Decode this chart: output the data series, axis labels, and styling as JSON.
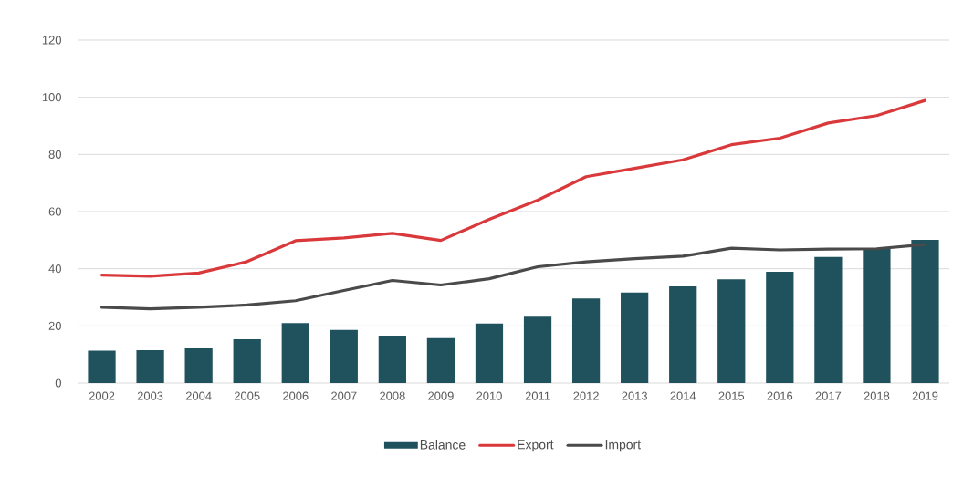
{
  "chart_data": {
    "type": "bar",
    "categories": [
      "2002",
      "2003",
      "2004",
      "2005",
      "2006",
      "2007",
      "2008",
      "2009",
      "2010",
      "2011",
      "2012",
      "2013",
      "2014",
      "2015",
      "2016",
      "2017",
      "2018",
      "2019"
    ],
    "series": [
      {
        "name": "Balance",
        "color": "#1f525d",
        "values": [
          11.3,
          11.5,
          12.1,
          15.3,
          21,
          18.6,
          16.6,
          15.7,
          20.8,
          23.2,
          29.6,
          31.7,
          33.8,
          36.3,
          38.9,
          44.1,
          47,
          50.1
        ]
      },
      {
        "name": "Export",
        "type": "line",
        "color": "#d9393b",
        "values": [
          37.8,
          37.4,
          38.5,
          42.5,
          49.8,
          50.8,
          52.4,
          49.9,
          57.3,
          64,
          72.2,
          75.1,
          78.1,
          83.4,
          85.7,
          91,
          93.6,
          98.9
        ]
      },
      {
        "name": "Import",
        "type": "line",
        "color": "#4a4a4a",
        "values": [
          26.5,
          26,
          26.5,
          27.3,
          28.8,
          32.4,
          35.9,
          34.3,
          36.5,
          40.7,
          42.4,
          43.5,
          44.4,
          47.2,
          46.6,
          46.9,
          47,
          48.5
        ]
      }
    ],
    "ylim": [
      0,
      120
    ],
    "yticks": [
      0,
      20,
      40,
      60,
      80,
      100,
      120
    ],
    "grid": "y",
    "legend": "bottom"
  }
}
